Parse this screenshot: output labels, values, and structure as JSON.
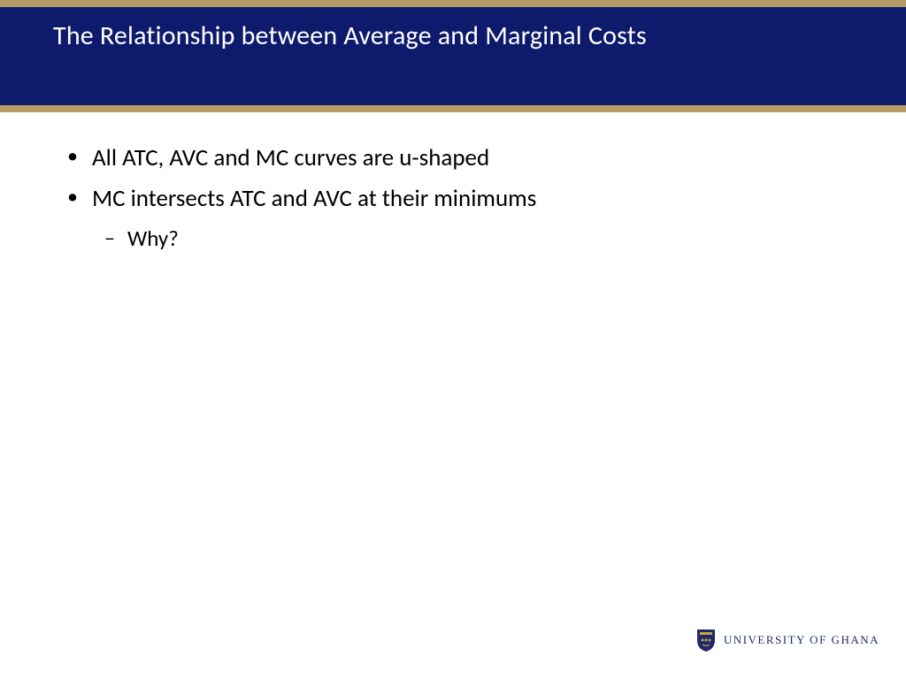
{
  "colors": {
    "accent_border": "#b49a64",
    "header_bg": "#0e1a6b",
    "header_text": "#ffffff",
    "body_text": "#000000",
    "footer_text": "#1f2a6e",
    "crest_bg": "#1f2a6e",
    "crest_accent": "#c9a43a"
  },
  "header": {
    "title": "The Relationship between Average and Marginal Costs"
  },
  "bullets": [
    {
      "text": "All ATC, AVC and MC curves are u-shaped"
    },
    {
      "text": "MC intersects ATC and AVC at their minimums",
      "sub": [
        {
          "text": "Why?"
        }
      ]
    }
  ],
  "footer": {
    "org": "UNIVERSITY OF GHANA"
  }
}
